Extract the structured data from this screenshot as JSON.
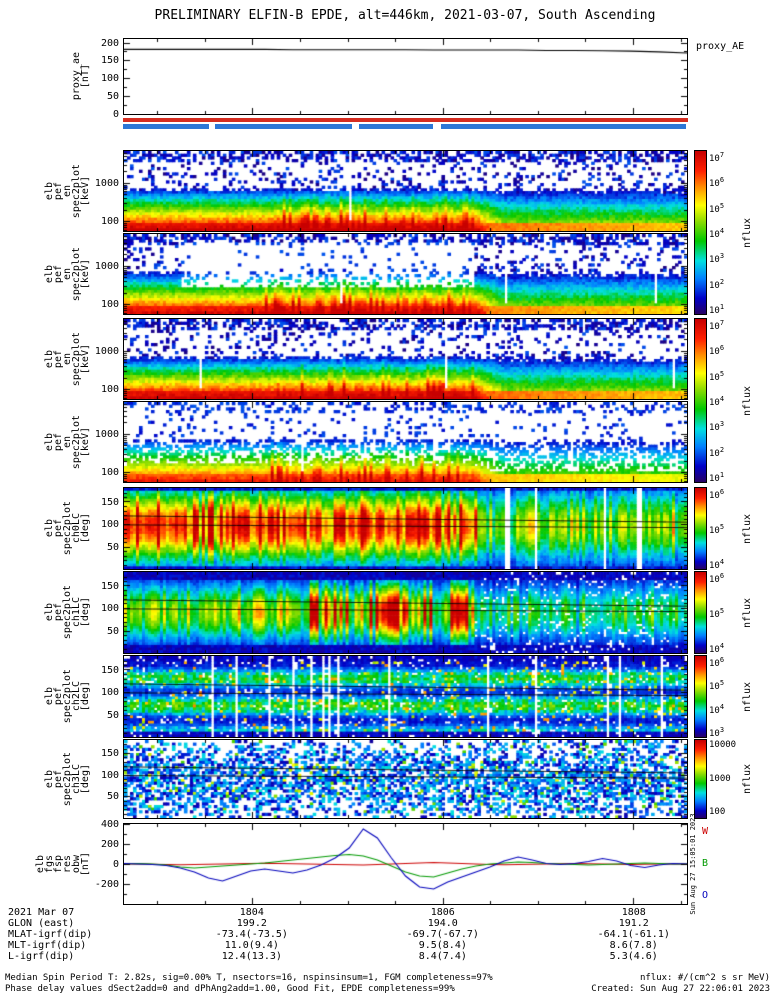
{
  "chart_data": {
    "type": "heatmap",
    "title": "PRELIMINARY ELFIN-B EPDE, alt=446km, 2021-03-07, South Ascending",
    "proxy_panel": {
      "type": "line",
      "ylabel_lines": [
        "proxy_ae",
        "[nT]"
      ],
      "right_label": "proxy_AE",
      "yrange": [
        0,
        210
      ],
      "yticks": [
        200,
        150,
        100,
        50,
        0
      ],
      "line_color": "#000000",
      "series_y": [
        181,
        181,
        181,
        181,
        181,
        181,
        180,
        180,
        180,
        180,
        180,
        179,
        179,
        179,
        179,
        178,
        178,
        177,
        176,
        174,
        171
      ]
    },
    "availability_bars": {
      "red": {
        "color": "#d62d20",
        "segments": [
          [
            0,
            1
          ]
        ]
      },
      "blue": {
        "color": "#2d77d6",
        "segments": [
          [
            0,
            0.152
          ],
          [
            0.163,
            0.405
          ],
          [
            0.418,
            0.548
          ],
          [
            0.562,
            0.997
          ]
        ]
      }
    },
    "panels": [
      {
        "id": "en-spec-0",
        "type": "heatmap",
        "ylabel_lines": [
          "elb",
          "pef",
          "en",
          "spec2plot",
          "[keV]"
        ],
        "yscale": "log",
        "yrange": [
          55,
          6800
        ],
        "yticks": [
          1000,
          100
        ],
        "texture": "en0",
        "seed": 101,
        "colorbar": 0
      },
      {
        "id": "en-spec-1",
        "type": "heatmap",
        "ylabel_lines": [
          "elb",
          "pef",
          "en",
          "spec2plot",
          "[keV]"
        ],
        "yscale": "log",
        "yrange": [
          55,
          6800
        ],
        "yticks": [
          1000,
          100
        ],
        "texture": "en1",
        "seed": 202,
        "colorbar": 0
      },
      {
        "id": "en-spec-2",
        "type": "heatmap",
        "ylabel_lines": [
          "elb",
          "pef",
          "en",
          "spec2plot",
          "[keV]"
        ],
        "yscale": "log",
        "yrange": [
          55,
          6800
        ],
        "yticks": [
          1000,
          100
        ],
        "texture": "en2",
        "seed": 303,
        "colorbar": 1
      },
      {
        "id": "en-spec-3",
        "type": "heatmap",
        "ylabel_lines": [
          "elb",
          "pef",
          "en",
          "spec2plot",
          "[keV]"
        ],
        "yscale": "log",
        "yrange": [
          55,
          6800
        ],
        "yticks": [
          1000,
          100
        ],
        "texture": "en3",
        "seed": 404,
        "colorbar": 1
      },
      {
        "id": "ch0LC",
        "type": "heatmap",
        "ylabel_lines": [
          "elb",
          "pef",
          "spec2plot",
          "ch0LC",
          "[deg]"
        ],
        "yscale": "linear",
        "yrange": [
          0,
          180
        ],
        "yticks": [
          150,
          100,
          50
        ],
        "texture": "pa0",
        "seed": 505,
        "colorbar": 2
      },
      {
        "id": "ch1LC",
        "type": "heatmap",
        "ylabel_lines": [
          "elb",
          "pef",
          "spec2plot",
          "ch1LC",
          "[deg]"
        ],
        "yscale": "linear",
        "yrange": [
          0,
          180
        ],
        "yticks": [
          150,
          100,
          50
        ],
        "texture": "pa1",
        "seed": 606,
        "colorbar": 3
      },
      {
        "id": "ch2LC",
        "type": "heatmap",
        "ylabel_lines": [
          "elb",
          "pef",
          "spec2plot",
          "ch2LC",
          "[deg]"
        ],
        "yscale": "linear",
        "yrange": [
          0,
          180
        ],
        "yticks": [
          150,
          100,
          50
        ],
        "texture": "pa2",
        "seed": 707,
        "colorbar": 4
      },
      {
        "id": "ch3LC",
        "type": "heatmap",
        "ylabel_lines": [
          "elb",
          "pef",
          "spec2plot",
          "ch3LC",
          "[deg]"
        ],
        "yscale": "linear",
        "yrange": [
          0,
          180
        ],
        "yticks": [
          150,
          100,
          50
        ],
        "texture": "pa3",
        "seed": 808,
        "colorbar": 5
      }
    ],
    "colorbars": [
      {
        "ticks": [
          "10^7",
          "10^6",
          "10^5",
          "10^4",
          "10^3",
          "10^2",
          "10^1"
        ],
        "label": "nflux"
      },
      {
        "ticks": [
          "10^7",
          "10^6",
          "10^5",
          "10^4",
          "10^3",
          "10^2",
          "10^1"
        ],
        "label": "nflux"
      },
      {
        "ticks": [
          "10^6",
          "10^5",
          "10^4"
        ],
        "label": "nflux"
      },
      {
        "ticks": [
          "10^6",
          "10^5",
          "10^4"
        ],
        "label": "nflux"
      },
      {
        "ticks": [
          "10^6",
          "10^5",
          "10^4",
          "10^3"
        ],
        "label": "nflux"
      },
      {
        "ticks": [
          "10000",
          "1000",
          "100"
        ],
        "label": "nflux"
      }
    ],
    "mag_panel": {
      "type": "line",
      "ylabel_lines": [
        "elb",
        "fgs",
        "fsp",
        "res",
        "obw",
        "[nT]"
      ],
      "yrange": [
        -400,
        400
      ],
      "yticks": [
        400,
        200,
        0,
        -200
      ],
      "series": [
        {
          "name": "W",
          "color": "#cc0000",
          "y": [
            0,
            2,
            -2,
            -5,
            -8,
            -5,
            -2,
            0,
            3,
            5,
            8,
            5,
            2,
            0,
            -3,
            -5,
            -8,
            -10,
            -5,
            0,
            5,
            10,
            15,
            10,
            5,
            0,
            -5,
            -8,
            -5,
            -2,
            0,
            2,
            5,
            2,
            0,
            -2,
            -5,
            -2,
            0,
            2,
            0
          ]
        },
        {
          "name": "B",
          "color": "#009900",
          "y": [
            0,
            5,
            0,
            -10,
            -30,
            -40,
            -30,
            -20,
            -10,
            0,
            10,
            25,
            40,
            55,
            70,
            85,
            95,
            80,
            40,
            -20,
            -80,
            -120,
            -130,
            -90,
            -50,
            -20,
            0,
            10,
            20,
            15,
            5,
            0,
            -5,
            -10,
            -5,
            0,
            5,
            10,
            5,
            0,
            0
          ]
        },
        {
          "name": "O",
          "color": "#0000bb",
          "y": [
            5,
            0,
            -5,
            -15,
            -40,
            -80,
            -140,
            -170,
            -120,
            -70,
            -50,
            -70,
            -90,
            -60,
            -10,
            60,
            160,
            350,
            260,
            60,
            -120,
            -230,
            -250,
            -180,
            -130,
            -80,
            -30,
            30,
            70,
            40,
            5,
            -5,
            5,
            25,
            55,
            30,
            -15,
            -35,
            -10,
            5,
            0
          ]
        }
      ]
    },
    "x_axis": {
      "date_label": "2021 Mar 07",
      "tick_labels": [
        "1804",
        "1806",
        "1808"
      ],
      "major_fracs": [
        0.228,
        0.566,
        0.904
      ]
    },
    "annotation_rows": [
      {
        "label": "GLON (east)",
        "values": [
          "199.2",
          "194.0",
          "191.2"
        ]
      },
      {
        "label": "MLAT-igrf(dip)",
        "values": [
          "-73.4(-73.5)",
          "-69.7(-67.7)",
          "-64.1(-61.1)"
        ]
      },
      {
        "label": "MLT-igrf(dip)",
        "values": [
          "11.0(9.4)",
          "9.5(8.4)",
          "8.6(7.8)"
        ]
      },
      {
        "label": "L-igrf(dip)",
        "values": [
          "12.4(13.3)",
          "8.4(7.4)",
          "5.3(4.6)"
        ]
      }
    ],
    "footer": {
      "left_lines": [
        "Median Spin Period T: 2.82s, sig=0.00% T, nsectors=16, nspinsinsum=1, FGM completeness=97%",
        "Phase delay values dSect2add=0 and dPhAng2add=1.00, Good Fit, EPDE completeness=99%"
      ],
      "right_lines": [
        "nflux: #/(cm^2 s sr MeV)",
        "Created: Sun Aug 27 22:06:01 2023"
      ],
      "side_stamp": "Sun Aug 27 15:05:01 2023"
    }
  }
}
